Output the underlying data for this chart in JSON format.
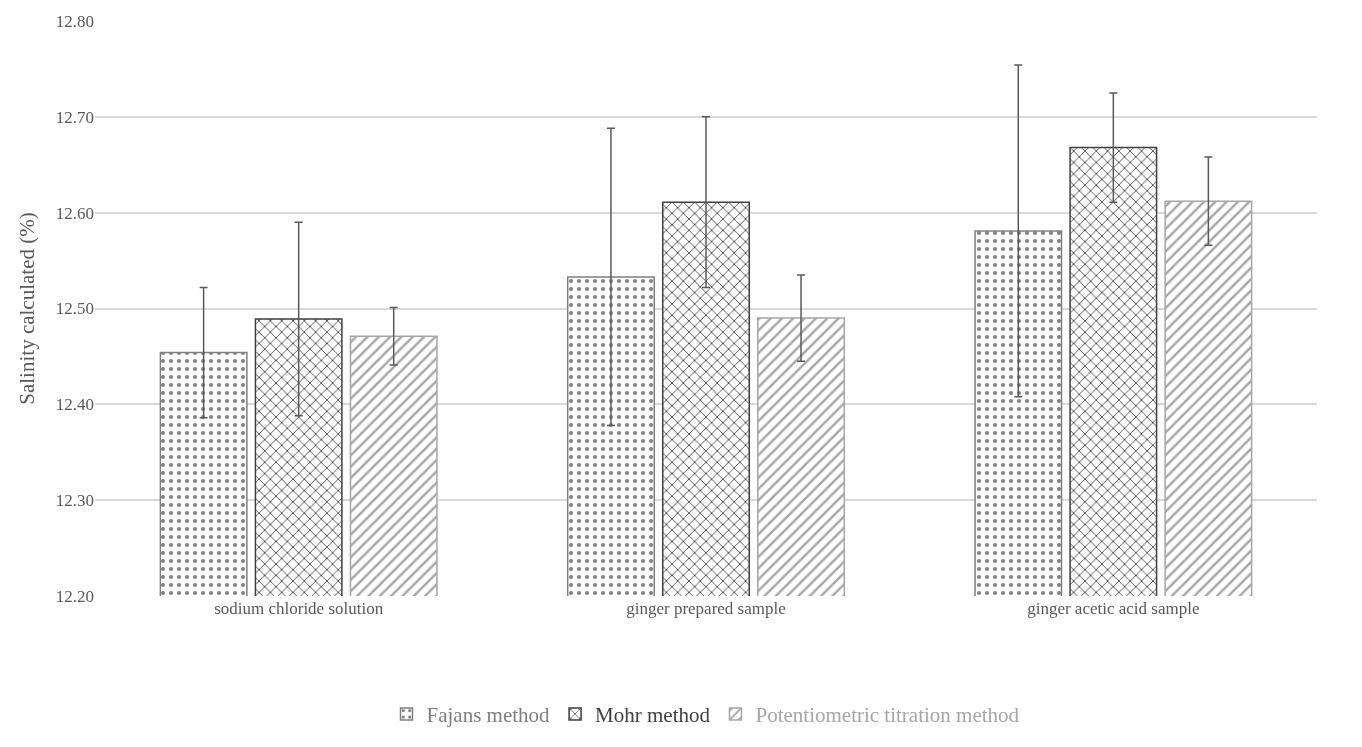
{
  "chart_data": {
    "type": "bar",
    "ylabel": "Salinity calculated (%)",
    "categories": [
      "sodium chloride solution",
      "ginger prepared sample",
      "ginger acetic acid sample"
    ],
    "series": [
      {
        "name": "Fajans method",
        "color": "#7f7f7f",
        "values": [
          12.454,
          12.533,
          12.581
        ],
        "errors": [
          0.068,
          0.155,
          0.173
        ]
      },
      {
        "name": "Mohr method",
        "color": "#404040",
        "values": [
          12.489,
          12.611,
          12.668
        ],
        "errors": [
          0.101,
          0.089,
          0.057
        ]
      },
      {
        "name": "Potentiometric titration method",
        "color": "#a6a6a6",
        "values": [
          12.471,
          12.49,
          12.612
        ],
        "errors": [
          0.03,
          0.045,
          0.046
        ]
      }
    ],
    "ylim": [
      12.2,
      12.8
    ],
    "yticks": [
      {
        "value": 12.2,
        "label": "12.20"
      },
      {
        "value": 12.3,
        "label": "12.30"
      },
      {
        "value": 12.4,
        "label": "12.40"
      },
      {
        "value": 12.5,
        "label": "12.50"
      },
      {
        "value": 12.6,
        "label": "12.60"
      },
      {
        "value": 12.7,
        "label": "12.70"
      },
      {
        "value": 12.8,
        "label": "12.80"
      }
    ],
    "grid": "y",
    "legend": "bottom"
  }
}
